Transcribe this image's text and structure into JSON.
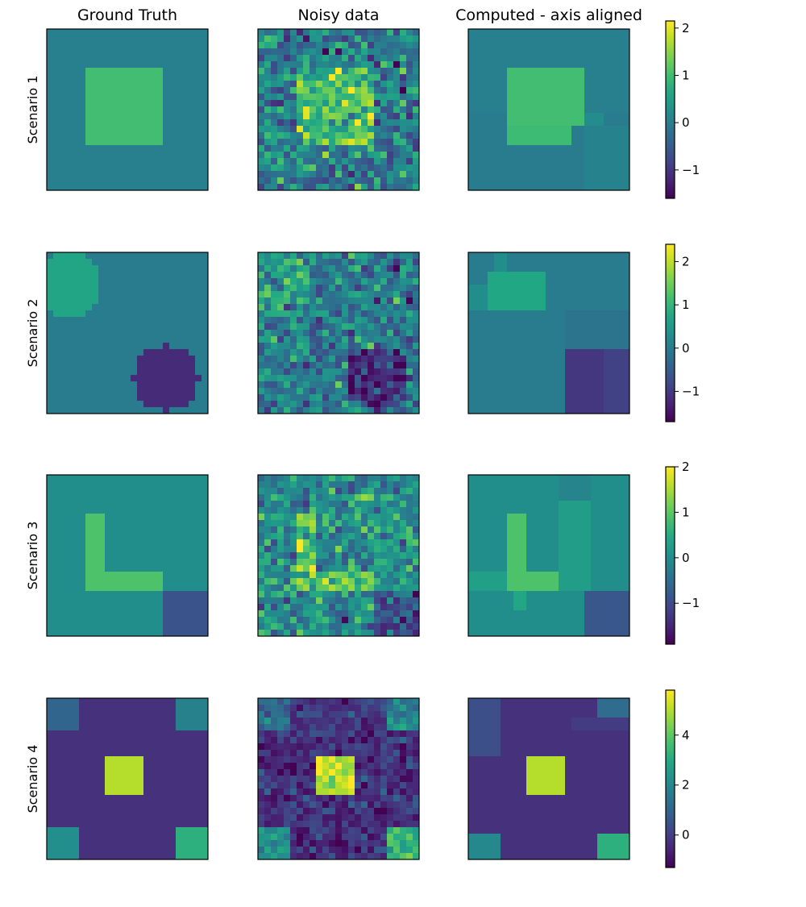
{
  "figure": {
    "column_titles": [
      "Ground Truth",
      "Noisy data",
      "Computed - axis aligned"
    ],
    "row_labels": [
      "Scenario 1",
      "Scenario 2",
      "Scenario 3",
      "Scenario 4"
    ],
    "colormap": "viridis"
  },
  "chart_data": {
    "type": "heatmap",
    "grid_size": 25,
    "scenarios": [
      {
        "name": "Scenario 1",
        "vmin": -1.6,
        "vmax": 2.15,
        "colorbar_ticks": [
          -1,
          0,
          1,
          2
        ],
        "background": 0.0,
        "ground_truth": [
          {
            "shape": "rect",
            "x0": 6,
            "x1": 18,
            "y0": 6,
            "y1": 18,
            "value": 1.0
          }
        ],
        "computed": [
          {
            "shape": "rect",
            "x0": 0,
            "x1": 25,
            "y0": 0,
            "y1": 25,
            "value": 0.0
          },
          {
            "shape": "rect",
            "x0": 0,
            "x1": 25,
            "y0": 13,
            "y1": 25,
            "value": -0.05
          },
          {
            "shape": "rect",
            "x0": 6,
            "x1": 18,
            "y0": 6,
            "y1": 15,
            "value": 1.0
          },
          {
            "shape": "rect",
            "x0": 6,
            "x1": 16,
            "y0": 15,
            "y1": 18,
            "value": 0.95
          },
          {
            "shape": "rect",
            "x0": 18,
            "x1": 21,
            "y0": 13,
            "y1": 15,
            "value": 0.2
          },
          {
            "shape": "rect",
            "x0": 18,
            "x1": 25,
            "y0": 15,
            "y1": 25,
            "value": 0.05
          }
        ]
      },
      {
        "name": "Scenario 2",
        "vmin": -1.7,
        "vmax": 2.4,
        "colorbar_ticks": [
          -1,
          0,
          1,
          2
        ],
        "background": 0.0,
        "ground_truth": [
          {
            "shape": "circle",
            "cx": 3.5,
            "cy": 5,
            "r": 5,
            "value": 0.7
          },
          {
            "shape": "circle",
            "cx": 18.5,
            "cy": 19.5,
            "r": 5,
            "value": -1.2
          }
        ],
        "computed": [
          {
            "shape": "rect",
            "x0": 0,
            "x1": 25,
            "y0": 0,
            "y1": 25,
            "value": 0.0
          },
          {
            "shape": "rect",
            "x0": 3,
            "x1": 12,
            "y0": 3,
            "y1": 9,
            "value": 0.75
          },
          {
            "shape": "rect",
            "x0": 4,
            "x1": 6,
            "y0": 0,
            "y1": 3,
            "value": 0.3
          },
          {
            "shape": "rect",
            "x0": 0,
            "x1": 3,
            "y0": 5,
            "y1": 9,
            "value": 0.3
          },
          {
            "shape": "rect",
            "x0": 15,
            "x1": 25,
            "y0": 9,
            "y1": 15,
            "value": -0.15
          },
          {
            "shape": "rect",
            "x0": 15,
            "x1": 21,
            "y0": 15,
            "y1": 25,
            "value": -1.05
          },
          {
            "shape": "rect",
            "x0": 21,
            "x1": 25,
            "y0": 15,
            "y1": 25,
            "value": -0.9
          }
        ]
      },
      {
        "name": "Scenario 3",
        "vmin": -1.9,
        "vmax": 2.0,
        "colorbar_ticks": [
          -1,
          0,
          1,
          2
        ],
        "background": 0.0,
        "ground_truth": [
          {
            "shape": "rect",
            "x0": 6,
            "x1": 9,
            "y0": 6,
            "y1": 18,
            "value": 0.9
          },
          {
            "shape": "rect",
            "x0": 9,
            "x1": 18,
            "y0": 15,
            "y1": 18,
            "value": 0.9
          },
          {
            "shape": "rect",
            "x0": 18,
            "x1": 25,
            "y0": 18,
            "y1": 25,
            "value": -0.9
          }
        ],
        "computed": [
          {
            "shape": "rect",
            "x0": 0,
            "x1": 25,
            "y0": 0,
            "y1": 25,
            "value": 0.0
          },
          {
            "shape": "rect",
            "x0": 14,
            "x1": 19,
            "y0": 0,
            "y1": 4,
            "value": -0.15
          },
          {
            "shape": "rect",
            "x0": 14,
            "x1": 19,
            "y0": 4,
            "y1": 18,
            "value": 0.25
          },
          {
            "shape": "rect",
            "x0": 0,
            "x1": 6,
            "y0": 15,
            "y1": 18,
            "value": 0.3
          },
          {
            "shape": "rect",
            "x0": 6,
            "x1": 9,
            "y0": 6,
            "y1": 18,
            "value": 0.9
          },
          {
            "shape": "rect",
            "x0": 9,
            "x1": 14,
            "y0": 15,
            "y1": 18,
            "value": 0.9
          },
          {
            "shape": "rect",
            "x0": 7,
            "x1": 9,
            "y0": 18,
            "y1": 21,
            "value": 0.4
          },
          {
            "shape": "rect",
            "x0": 18,
            "x1": 25,
            "y0": 18,
            "y1": 25,
            "value": -0.85
          }
        ]
      },
      {
        "name": "Scenario 4",
        "vmin": -1.3,
        "vmax": 5.8,
        "colorbar_ticks": [
          0,
          2,
          4
        ],
        "background": -0.3,
        "ground_truth": [
          {
            "shape": "rect",
            "x0": 9,
            "x1": 15,
            "y0": 9,
            "y1": 15,
            "value": 5.0
          },
          {
            "shape": "rect",
            "x0": 0,
            "x1": 5,
            "y0": 0,
            "y1": 5,
            "value": 1.0
          },
          {
            "shape": "rect",
            "x0": 20,
            "x1": 25,
            "y0": 0,
            "y1": 5,
            "value": 1.8
          },
          {
            "shape": "rect",
            "x0": 0,
            "x1": 5,
            "y0": 20,
            "y1": 25,
            "value": 2.2
          },
          {
            "shape": "rect",
            "x0": 20,
            "x1": 25,
            "y0": 20,
            "y1": 25,
            "value": 3.2
          }
        ],
        "computed": [
          {
            "shape": "rect",
            "x0": 0,
            "x1": 25,
            "y0": 0,
            "y1": 25,
            "value": -0.3
          },
          {
            "shape": "rect",
            "x0": 0,
            "x1": 5,
            "y0": 0,
            "y1": 9,
            "value": 0.4
          },
          {
            "shape": "rect",
            "x0": 20,
            "x1": 25,
            "y0": 0,
            "y1": 3,
            "value": 1.2
          },
          {
            "shape": "rect",
            "x0": 16,
            "x1": 25,
            "y0": 3,
            "y1": 5,
            "value": -0.05
          },
          {
            "shape": "rect",
            "x0": 9,
            "x1": 15,
            "y0": 9,
            "y1": 15,
            "value": 5.0
          },
          {
            "shape": "rect",
            "x0": 0,
            "x1": 5,
            "y0": 21,
            "y1": 25,
            "value": 2.0
          },
          {
            "shape": "rect",
            "x0": 20,
            "x1": 25,
            "y0": 21,
            "y1": 25,
            "value": 3.2
          }
        ]
      }
    ]
  }
}
